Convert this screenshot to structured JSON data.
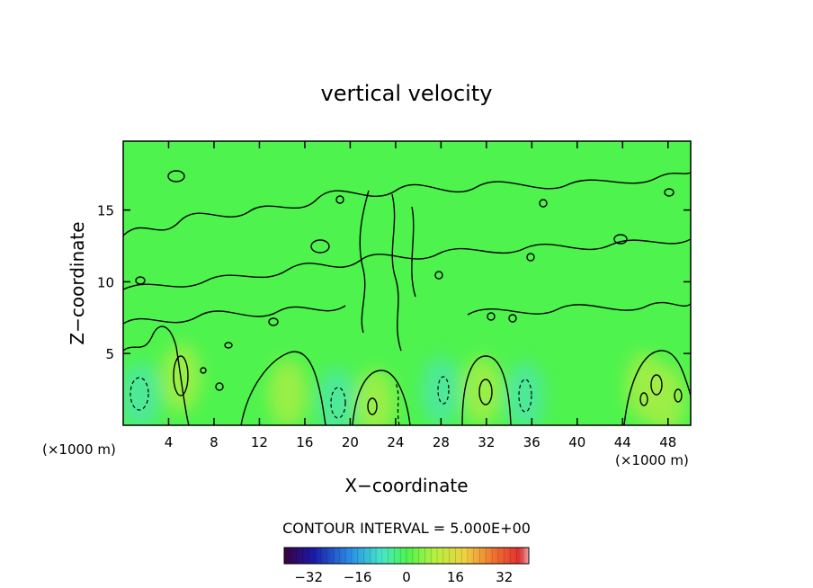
{
  "chart_data": {
    "type": "heatmap",
    "title": "vertical velocity",
    "xlabel": "X−coordinate",
    "ylabel": "Z−coordinate",
    "x_unit_left": "(×1000 m)",
    "x_unit_right": "(×1000 m)",
    "xlim": [
      0,
      50
    ],
    "ylim": [
      0,
      19.8
    ],
    "x_ticks": [
      4,
      8,
      12,
      16,
      20,
      24,
      28,
      32,
      36,
      40,
      44,
      48
    ],
    "y_ticks": [
      5,
      10,
      15
    ],
    "contour_interval_label": "CONTOUR INTERVAL = 5.000E+00",
    "colorbar": {
      "range": [
        -40,
        40
      ],
      "ticks": [
        -32,
        -16,
        0,
        16,
        32
      ],
      "tick_labels": [
        "−32",
        "−16",
        "0",
        "16",
        "32"
      ]
    },
    "features": [
      {
        "kind": "updraft",
        "x": 5.1,
        "z": 3.3,
        "value": 10
      },
      {
        "kind": "updraft",
        "x": 14.5,
        "z": 2.2,
        "value": 5
      },
      {
        "kind": "downdraft",
        "x": 1.5,
        "z": 2.0,
        "value": -5
      },
      {
        "kind": "downdraft",
        "x": 18.8,
        "z": 1.6,
        "value": -5
      },
      {
        "kind": "updraft",
        "x": 22.2,
        "z": 1.5,
        "value": 10
      },
      {
        "kind": "downdraft",
        "x": 28.0,
        "z": 2.4,
        "value": -5
      },
      {
        "kind": "updraft",
        "x": 31.6,
        "z": 2.4,
        "value": 15
      },
      {
        "kind": "downdraft",
        "x": 35.4,
        "z": 2.0,
        "value": -5
      },
      {
        "kind": "updraft",
        "x": 46.0,
        "z": 2.7,
        "value": 10
      },
      {
        "kind": "updraft",
        "x": 47.8,
        "z": 1.8,
        "value": 10
      }
    ],
    "colors": {
      "background": "#4ef34e",
      "updraft": "#a6ee44",
      "downdraft": "#4ee8a6",
      "contour": "#000000"
    }
  }
}
